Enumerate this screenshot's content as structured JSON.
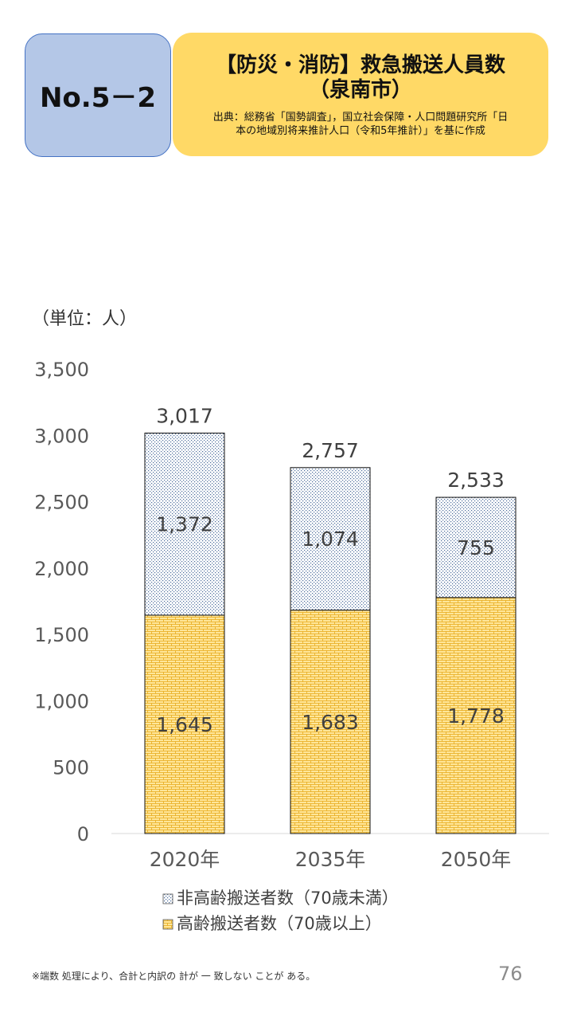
{
  "header": {
    "badge": "No.5－2",
    "title_line1": "【防災・消防】救急搬送人員数",
    "title_line2": "（泉南市）",
    "source_line1": "出典：総務省「国勢調査」，国立社会保障・人口問題研究所「日",
    "source_line2": "本の地域別将来推計人口（令和5年推計）」を基に作成"
  },
  "unit_label": "（単位：人）",
  "footnote": "※端数 処理により、合計と内訳の 計が 一 致しない ことが ある。",
  "page_number": "76",
  "colors": {
    "badge_bg": "#b4c7e7",
    "title_bg": "#ffd966",
    "elderly_fill": "#ffe699",
    "elderly_pattern": "#e6a817",
    "non_elderly_fill": "#ffffff",
    "non_elderly_pattern": "#4a6a9a"
  },
  "chart_data": {
    "type": "bar",
    "stacked": true,
    "categories": [
      "2020年",
      "2035年",
      "2050年"
    ],
    "series": [
      {
        "name": "高齢搬送者数（70歳以上）",
        "values": [
          1645,
          1683,
          1778
        ]
      },
      {
        "name": "非高齢搬送者数（70歳未満）",
        "values": [
          1372,
          1074,
          755
        ]
      }
    ],
    "totals": [
      3017,
      2757,
      2533
    ],
    "value_labels": {
      "elderly": [
        "1,645",
        "1,683",
        "1,778"
      ],
      "non_elderly": [
        "1,372",
        "1,074",
        "755"
      ],
      "totals": [
        "3,017",
        "2,757",
        "2,533"
      ]
    },
    "y_ticks": [
      {
        "value": 0,
        "label": "0"
      },
      {
        "value": 500,
        "label": "500"
      },
      {
        "value": 1000,
        "label": "1,000"
      },
      {
        "value": 1500,
        "label": "1,500"
      },
      {
        "value": 2000,
        "label": "2,000"
      },
      {
        "value": 2500,
        "label": "2,500"
      },
      {
        "value": 3000,
        "label": "3,000"
      },
      {
        "value": 3500,
        "label": "3,500"
      }
    ],
    "ylim": [
      0,
      3500
    ],
    "grid": false,
    "legend_position": "bottom",
    "legend": [
      "非高齢搬送者数（70歳未満）",
      "高齢搬送者数（70歳以上）"
    ]
  }
}
